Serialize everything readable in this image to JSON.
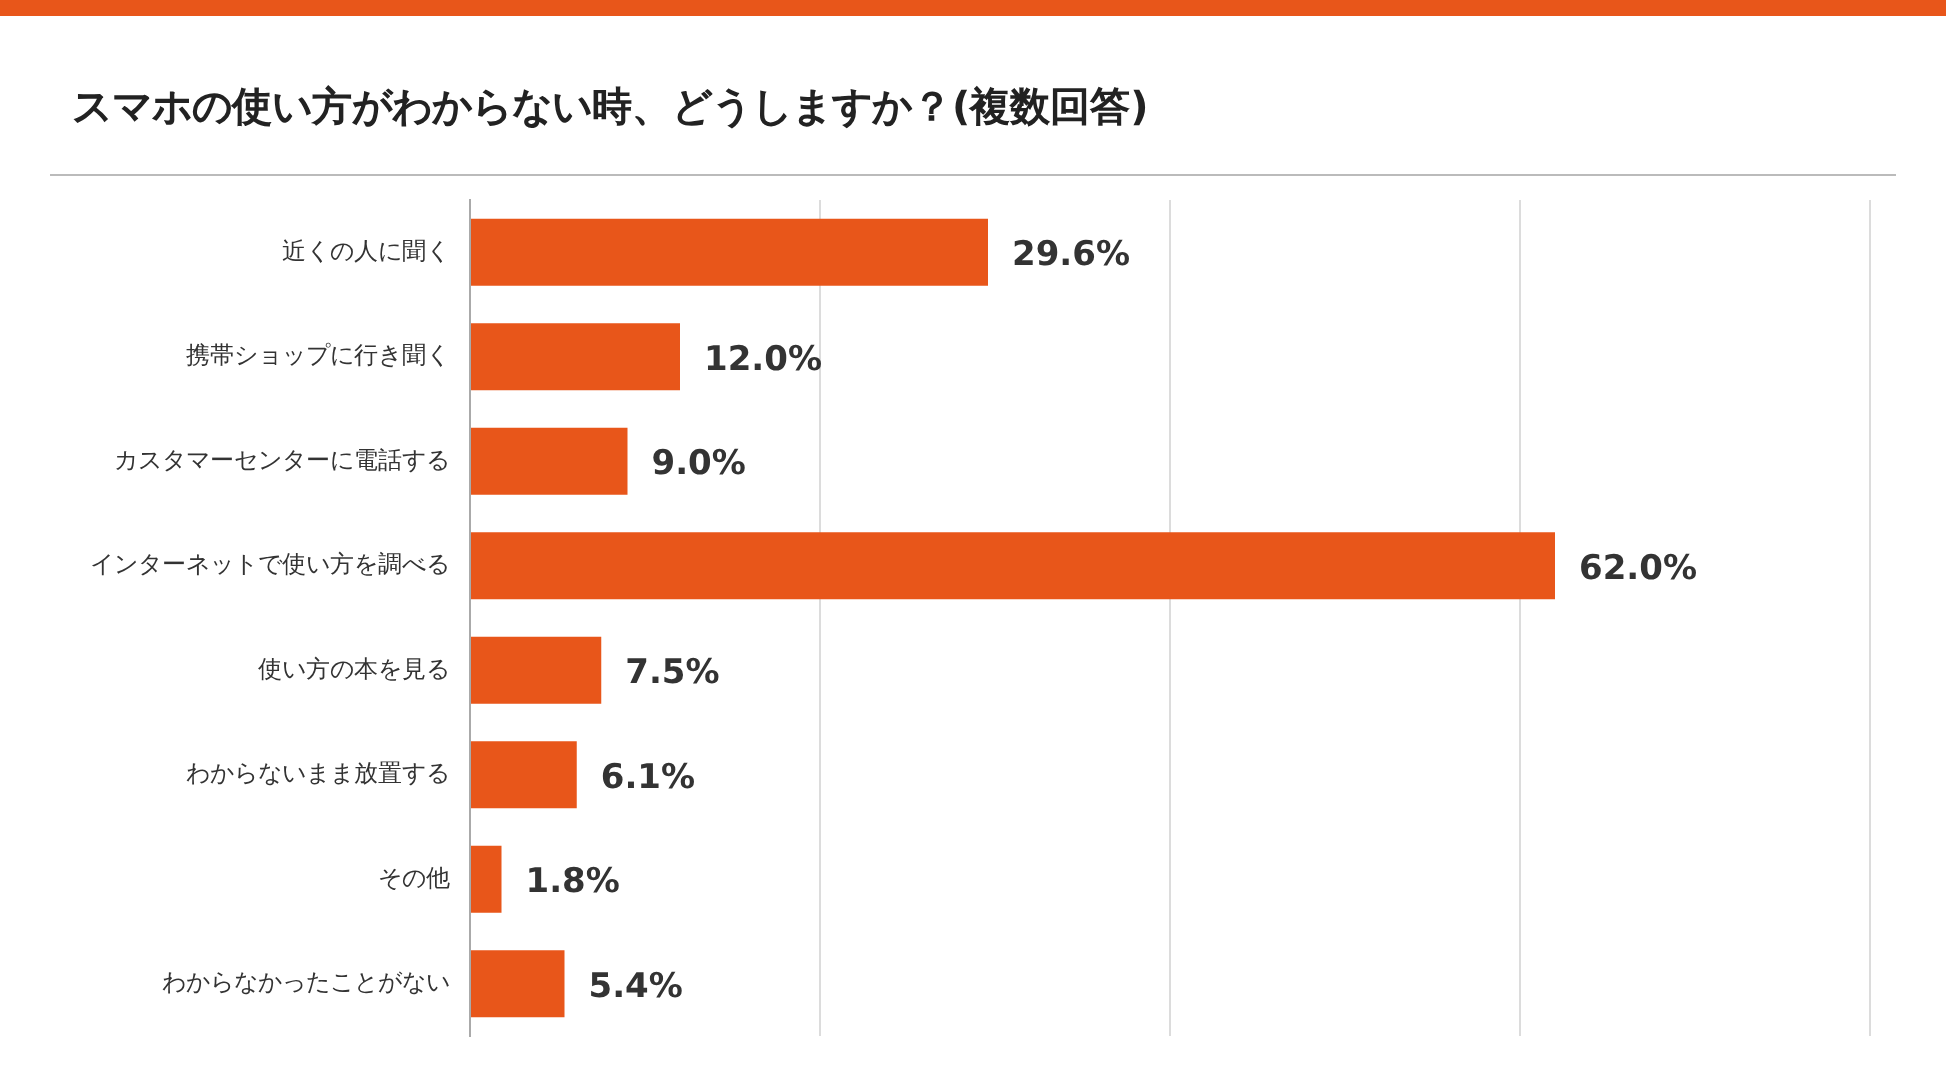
{
  "chart_data": {
    "type": "bar",
    "orientation": "horizontal",
    "title": "スマホの使い方がわからない時、どうしますか？(複数回答)",
    "categories": [
      "近くの人に聞く",
      "携帯ショップに行き聞く",
      "カスタマーセンターに電話する",
      "インターネットで使い方を調べる",
      "使い方の本を見る",
      "わからないまま放置する",
      "その他",
      "わからなかったことがない"
    ],
    "values": [
      29.6,
      12.0,
      9.0,
      62.0,
      7.5,
      6.1,
      1.8,
      5.4
    ],
    "value_labels": [
      "29.6%",
      "12.0%",
      "9.0%",
      "62.0%",
      "7.5%",
      "6.1%",
      "1.8%",
      "5.4%"
    ],
    "color": "#e8561a",
    "xlim": [
      0,
      80
    ],
    "xticks": [
      0,
      {
        "value": 20,
        "label": null
      },
      {
        "value": 40,
        "label": null
      },
      {
        "value": 60,
        "label": null
      },
      {
        "value": 80,
        "label": null
      }
    ],
    "grid": "x",
    "tick_labels": "y"
  }
}
